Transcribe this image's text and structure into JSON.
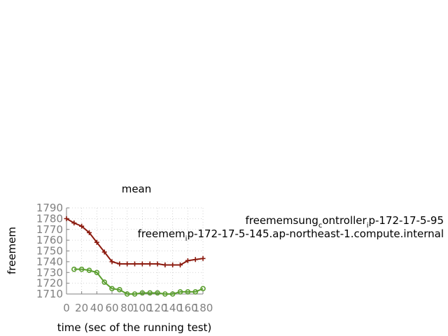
{
  "chart_data": {
    "type": "line",
    "title": "mean",
    "xlabel": "time (sec of the running test)",
    "ylabel": "freemem",
    "xlim": [
      0,
      180
    ],
    "ylim": [
      1710,
      1790
    ],
    "x_ticks": [
      0,
      20,
      40,
      60,
      80,
      100,
      120,
      140,
      160,
      180
    ],
    "x_tick_labels": [
      "0",
      "20",
      "40",
      "60",
      "80",
      "100",
      "120",
      "140",
      "160",
      "180"
    ],
    "y_ticks": [
      1710,
      1720,
      1730,
      1740,
      1750,
      1760,
      1770,
      1780,
      1790
    ],
    "y_tick_labels": [
      "1710",
      "1720",
      "1730",
      "1740",
      "1750",
      "1760",
      "1770",
      "1780",
      "1790"
    ],
    "grid": true,
    "legend_position": "right",
    "series": [
      {
        "name": "freemem_sung_controller_ip-172-17-5-95",
        "legend_label_main": "freemem",
        "legend_label_rest": "sung",
        "legend_label_sub": "c",
        "legend_label_tail": "ontroller",
        "legend_label_sub2": "i",
        "legend_label_end": "p-172-17-5-95",
        "color": "#8b1a0e",
        "marker": "plus",
        "x": [
          0,
          10,
          20,
          30,
          40,
          50,
          60,
          70,
          80,
          90,
          100,
          110,
          120,
          130,
          140,
          150,
          160,
          170,
          180
        ],
        "values": [
          1780,
          1776,
          1773,
          1767,
          1758,
          1749,
          1740,
          1738,
          1738,
          1738,
          1738,
          1738,
          1738,
          1737,
          1737,
          1737,
          1741,
          1742,
          1743
        ]
      },
      {
        "name": "freemem_ip-172-17-5-145.ap-northeast-1.compute.internal",
        "legend_label_main": "freemem",
        "legend_label_sub": "i",
        "legend_label_end": "p-172-17-5-145.ap-northeast-1.compute.internal",
        "color": "#5a9e2f",
        "marker": "circle",
        "x": [
          10,
          20,
          30,
          40,
          50,
          60,
          70,
          80,
          90,
          100,
          110,
          120,
          130,
          140,
          150,
          160,
          170,
          180
        ],
        "values": [
          1733,
          1733,
          1732,
          1730,
          1721,
          1715,
          1714,
          1710,
          1710,
          1711,
          1711,
          1711,
          1710,
          1710,
          1712,
          1712,
          1712,
          1715
        ]
      }
    ]
  }
}
